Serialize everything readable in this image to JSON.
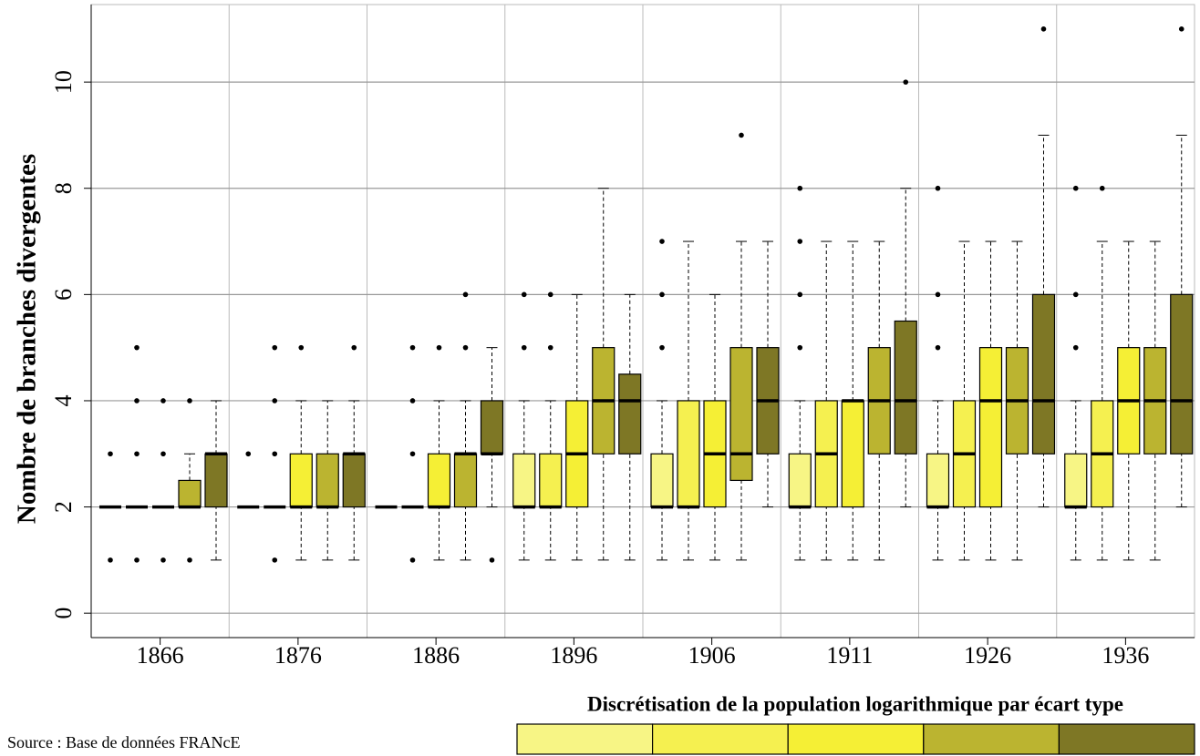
{
  "chart_data": {
    "type": "boxplot",
    "y_label": "Nombre de branches divergentes",
    "categories": [
      "1866",
      "1876",
      "1886",
      "1896",
      "1906",
      "1911",
      "1926",
      "1936"
    ],
    "ylim": [
      -0.46,
      11.46
    ],
    "yticks": [
      0,
      2,
      4,
      6,
      8,
      10
    ],
    "grid": true,
    "legend_title": "Discrétisation de la population logarithmique par écart type",
    "source": "Source : Base de données FRANcE",
    "series": [
      {
        "color": "#f7f585",
        "boxes": [
          {
            "low": 2,
            "q1": 2,
            "median": 2,
            "q3": 2,
            "high": 2,
            "outliers": [
              1,
              3
            ]
          },
          {
            "low": 2,
            "q1": 2,
            "median": 2,
            "q3": 2,
            "high": 2,
            "outliers": [
              3
            ]
          },
          {
            "low": 2,
            "q1": 2,
            "median": 2,
            "q3": 2,
            "high": 2,
            "outliers": []
          },
          {
            "low": 1,
            "q1": 2,
            "median": 2,
            "q3": 3,
            "high": 4,
            "outliers": [
              5,
              6
            ]
          },
          {
            "low": 1,
            "q1": 2,
            "median": 2,
            "q3": 3,
            "high": 4,
            "outliers": [
              5,
              6,
              7
            ]
          },
          {
            "low": 1,
            "q1": 2,
            "median": 2,
            "q3": 3,
            "high": 4,
            "outliers": [
              5,
              6,
              7,
              8
            ]
          },
          {
            "low": 1,
            "q1": 2,
            "median": 2,
            "q3": 3,
            "high": 4,
            "outliers": [
              5,
              6,
              8
            ]
          },
          {
            "low": 1,
            "q1": 2,
            "median": 2,
            "q3": 3,
            "high": 4,
            "outliers": [
              5,
              6,
              8
            ]
          }
        ]
      },
      {
        "color": "#f5f050",
        "boxes": [
          {
            "low": 2,
            "q1": 2,
            "median": 2,
            "q3": 2,
            "high": 2,
            "outliers": [
              1,
              3,
              4,
              5
            ]
          },
          {
            "low": 2,
            "q1": 2,
            "median": 2,
            "q3": 2,
            "high": 2,
            "outliers": [
              1,
              3,
              4,
              5
            ]
          },
          {
            "low": 2,
            "q1": 2,
            "median": 2,
            "q3": 2,
            "high": 2,
            "outliers": [
              1,
              3,
              4,
              5
            ]
          },
          {
            "low": 1,
            "q1": 2,
            "median": 2,
            "q3": 3,
            "high": 4,
            "outliers": [
              5,
              6
            ]
          },
          {
            "low": 1,
            "q1": 2,
            "median": 2,
            "q3": 4,
            "high": 7,
            "outliers": []
          },
          {
            "low": 1,
            "q1": 2,
            "median": 3,
            "q3": 4,
            "high": 7,
            "outliers": []
          },
          {
            "low": 1,
            "q1": 2,
            "median": 3,
            "q3": 4,
            "high": 7,
            "outliers": []
          },
          {
            "low": 1,
            "q1": 2,
            "median": 3,
            "q3": 4,
            "high": 7,
            "outliers": [
              8
            ]
          }
        ]
      },
      {
        "color": "#f5ef35",
        "boxes": [
          {
            "low": 2,
            "q1": 2,
            "median": 2,
            "q3": 2,
            "high": 2,
            "outliers": [
              1,
              3,
              4
            ]
          },
          {
            "low": 1,
            "q1": 2,
            "median": 2,
            "q3": 3,
            "high": 4,
            "outliers": [
              5
            ]
          },
          {
            "low": 1,
            "q1": 2,
            "median": 2,
            "q3": 3,
            "high": 4,
            "outliers": [
              5
            ]
          },
          {
            "low": 1,
            "q1": 2,
            "median": 3,
            "q3": 4,
            "high": 6,
            "outliers": []
          },
          {
            "low": 1,
            "q1": 2,
            "median": 3,
            "q3": 4,
            "high": 6,
            "outliers": []
          },
          {
            "low": 1,
            "q1": 2,
            "median": 4,
            "q3": 4,
            "high": 7,
            "outliers": []
          },
          {
            "low": 1,
            "q1": 2,
            "median": 4,
            "q3": 5,
            "high": 7,
            "outliers": []
          },
          {
            "low": 1,
            "q1": 3,
            "median": 4,
            "q3": 5,
            "high": 7,
            "outliers": []
          }
        ]
      },
      {
        "color": "#bbb430",
        "boxes": [
          {
            "low": 2,
            "q1": 2,
            "median": 2,
            "q3": 2.5,
            "high": 3,
            "outliers": [
              1,
              4
            ]
          },
          {
            "low": 1,
            "q1": 2,
            "median": 2,
            "q3": 3,
            "high": 4,
            "outliers": []
          },
          {
            "low": 1,
            "q1": 2,
            "median": 3,
            "q3": 3,
            "high": 4,
            "outliers": [
              5,
              6
            ]
          },
          {
            "low": 1,
            "q1": 3,
            "median": 4,
            "q3": 5,
            "high": 8,
            "outliers": []
          },
          {
            "low": 1,
            "q1": 2.5,
            "median": 3,
            "q3": 5,
            "high": 7,
            "outliers": [
              9
            ]
          },
          {
            "low": 1,
            "q1": 3,
            "median": 4,
            "q3": 5,
            "high": 7,
            "outliers": []
          },
          {
            "low": 1,
            "q1": 3,
            "median": 4,
            "q3": 5,
            "high": 7,
            "outliers": []
          },
          {
            "low": 1,
            "q1": 3,
            "median": 4,
            "q3": 5,
            "high": 7,
            "outliers": []
          }
        ]
      },
      {
        "color": "#7e7725",
        "boxes": [
          {
            "low": 1,
            "q1": 2,
            "median": 3,
            "q3": 3,
            "high": 4,
            "outliers": []
          },
          {
            "low": 1,
            "q1": 2,
            "median": 3,
            "q3": 3,
            "high": 4,
            "outliers": [
              5
            ]
          },
          {
            "low": 2,
            "q1": 3,
            "median": 3,
            "q3": 4,
            "high": 5,
            "outliers": [
              1
            ]
          },
          {
            "low": 1,
            "q1": 3,
            "median": 4,
            "q3": 4.5,
            "high": 6,
            "outliers": []
          },
          {
            "low": 2,
            "q1": 3,
            "median": 4,
            "q3": 5,
            "high": 7,
            "outliers": []
          },
          {
            "low": 2,
            "q1": 3,
            "median": 4,
            "q3": 5.5,
            "high": 8,
            "outliers": [
              10
            ]
          },
          {
            "low": 2,
            "q1": 3,
            "median": 4,
            "q3": 6,
            "high": 9,
            "outliers": [
              11
            ]
          },
          {
            "low": 2,
            "q1": 3,
            "median": 4,
            "q3": 6,
            "high": 9,
            "outliers": [
              11
            ]
          }
        ]
      }
    ]
  }
}
